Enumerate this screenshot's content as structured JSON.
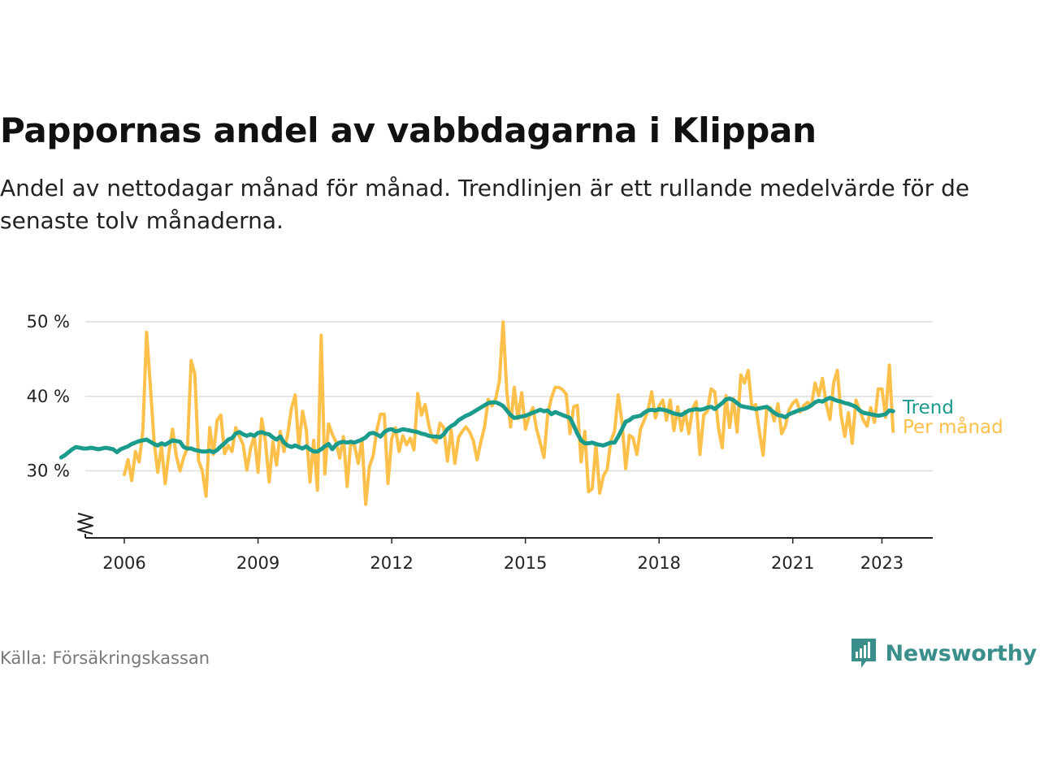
{
  "header": {
    "title": "Pappornas andel av vabbdagarna i Klippan",
    "subtitle": "Andel av nettodagar månad för månad. Trendlinjen är ett rullande medelvärde för de senaste tolv månaderna."
  },
  "footer": {
    "source": "Källa: Försäkringskassan",
    "brand": "Newsworthy"
  },
  "colors": {
    "monthly": "#fdc04a",
    "trend": "#1a9b8c",
    "axis": "#222222",
    "grid": "#dddddd",
    "brand": "#3a8f8a"
  },
  "chart_data": {
    "type": "line",
    "x_start": "2006-01",
    "x_end": "2023-04",
    "ylim": [
      21,
      51
    ],
    "y_ticks": [
      30,
      40,
      50
    ],
    "y_tick_labels": [
      "30 %",
      "40 %",
      "50 %"
    ],
    "x_ticks": [
      2006,
      2009,
      2012,
      2015,
      2018,
      2021,
      2023
    ],
    "x_tick_labels": [
      "2006",
      "2009",
      "2012",
      "2015",
      "2018",
      "2021",
      "2023"
    ],
    "grid": true,
    "broken_y_axis": true,
    "series": [
      {
        "name": "Per månad",
        "values": [
          29.5,
          31.5,
          28.7,
          32.6,
          31.2,
          35.5,
          48.6,
          41.5,
          34.0,
          29.8,
          33.3,
          28.3,
          32.4,
          35.6,
          32.0,
          30.0,
          31.8,
          33.1,
          44.8,
          43.0,
          31.4,
          30.0,
          26.6,
          35.8,
          32.2,
          36.8,
          37.5,
          32.3,
          33.4,
          32.6,
          35.8,
          34.6,
          33.5,
          30.1,
          33.0,
          34.7,
          29.8,
          37.0,
          33.9,
          28.5,
          33.9,
          30.8,
          35.3,
          32.6,
          34.9,
          38.4,
          40.2,
          33.3,
          38.0,
          35.5,
          28.5,
          34.1,
          27.4,
          48.2,
          29.6,
          36.3,
          34.9,
          33.9,
          31.7,
          34.6,
          27.9,
          34.0,
          33.3,
          31.0,
          34.3,
          25.5,
          30.6,
          32.0,
          35.5,
          37.6,
          37.6,
          28.3,
          34.3,
          35.8,
          32.6,
          34.7,
          33.5,
          34.4,
          32.8,
          40.4,
          37.5,
          38.9,
          36.1,
          34.3,
          33.8,
          36.4,
          35.8,
          31.3,
          35.5,
          31.0,
          34.5,
          35.3,
          35.9,
          35.2,
          34.0,
          31.5,
          33.9,
          35.9,
          39.6,
          38.7,
          39.7,
          42.1,
          50.0,
          40.6,
          35.9,
          41.2,
          37.0,
          40.5,
          35.6,
          37.3,
          38.5,
          35.6,
          33.8,
          31.8,
          37.6,
          39.8,
          41.2,
          41.2,
          40.9,
          40.3,
          35.0,
          38.6,
          38.8,
          31.2,
          35.3,
          27.2,
          27.6,
          33.5,
          27.0,
          29.3,
          30.2,
          34.0,
          35.3,
          40.2,
          36.6,
          30.3,
          34.8,
          34.4,
          32.2,
          35.6,
          36.8,
          38.1,
          40.6,
          37.1,
          38.7,
          39.5,
          36.8,
          39.5,
          35.4,
          38.6,
          35.4,
          38.0,
          35.0,
          38.3,
          39.3,
          32.2,
          37.5,
          38.0,
          41.0,
          40.6,
          35.7,
          33.1,
          40.1,
          35.8,
          39.7,
          35.2,
          42.9,
          41.8,
          43.5,
          38.4,
          38.9,
          35.3,
          32.1,
          38.5,
          38.5,
          36.7,
          39.0,
          35.0,
          36.0,
          38.2,
          39.1,
          39.5,
          37.9,
          38.8,
          39.2,
          38.7,
          41.8,
          40.1,
          42.4,
          39.0,
          36.9,
          41.8,
          43.5,
          37.5,
          34.6,
          37.8,
          33.7,
          39.5,
          38.2,
          36.8,
          36.0,
          38.5,
          36.5,
          41.0,
          41.0,
          37.2,
          44.2,
          35.3
        ]
      },
      {
        "name": "Trend",
        "values": [
          31.8,
          32.1,
          32.5,
          32.9,
          33.2,
          33.1,
          33.0,
          33.0,
          33.1,
          33.0,
          32.9,
          33.0,
          33.1,
          33.0,
          32.9,
          32.5,
          32.9,
          33.1,
          33.3,
          33.6,
          33.8,
          34.0,
          34.1,
          34.2,
          33.9,
          33.6,
          33.4,
          33.7,
          33.5,
          33.8,
          34.1,
          34.0,
          33.9,
          33.2,
          33.0,
          33.0,
          32.8,
          32.7,
          32.6,
          32.6,
          32.7,
          32.5,
          32.8,
          33.3,
          33.7,
          34.2,
          34.4,
          35.0,
          35.2,
          34.9,
          34.7,
          34.9,
          34.7,
          35.1,
          35.2,
          35.0,
          34.9,
          34.5,
          34.2,
          34.6,
          33.8,
          33.4,
          33.2,
          33.4,
          33.2,
          33.0,
          33.3,
          32.9,
          32.6,
          32.6,
          32.9,
          33.3,
          33.6,
          32.9,
          33.5,
          33.8,
          33.9,
          33.8,
          33.9,
          33.8,
          34.0,
          34.2,
          34.5,
          35.0,
          35.1,
          34.9,
          34.6,
          35.2,
          35.5,
          35.6,
          35.3,
          35.4,
          35.6,
          35.5,
          35.4,
          35.3,
          35.2,
          35.0,
          34.9,
          34.7,
          34.6,
          34.6,
          34.5,
          34.9,
          35.6,
          36.0,
          36.3,
          36.8,
          37.1,
          37.4,
          37.6,
          37.9,
          38.2,
          38.5,
          38.8,
          39.1,
          39.2,
          39.2,
          39.0,
          38.7,
          38.1,
          37.5,
          37.1,
          37.2,
          37.3,
          37.4,
          37.6,
          37.8,
          38.0,
          38.2,
          38.0,
          38.1,
          37.6,
          37.9,
          37.7,
          37.5,
          37.3,
          37.1,
          36.1,
          35.0,
          34.1,
          33.7,
          33.7,
          33.8,
          33.6,
          33.5,
          33.4,
          33.6,
          33.8,
          33.8,
          34.6,
          35.6,
          36.6,
          36.8,
          37.2,
          37.3,
          37.4,
          37.8,
          38.1,
          38.2,
          38.1,
          38.3,
          38.2,
          38.1,
          37.9,
          37.7,
          37.6,
          37.5,
          37.8,
          38.1,
          38.2,
          38.3,
          38.2,
          38.3,
          38.5,
          38.6,
          38.3,
          38.7,
          39.1,
          39.6,
          39.7,
          39.5,
          39.1,
          38.7,
          38.6,
          38.5,
          38.4,
          38.3,
          38.4,
          38.5,
          38.6,
          38.2,
          37.8,
          37.5,
          37.4,
          37.2,
          37.6,
          37.8,
          38.0,
          38.2,
          38.3,
          38.5,
          38.8,
          39.2,
          39.4,
          39.3,
          39.6,
          39.8,
          39.6,
          39.4,
          39.3,
          39.1,
          39.0,
          38.8,
          38.6,
          38.1,
          37.8,
          37.7,
          37.6,
          37.5,
          37.4,
          37.5,
          37.6,
          38.1,
          38.0
        ]
      }
    ]
  }
}
